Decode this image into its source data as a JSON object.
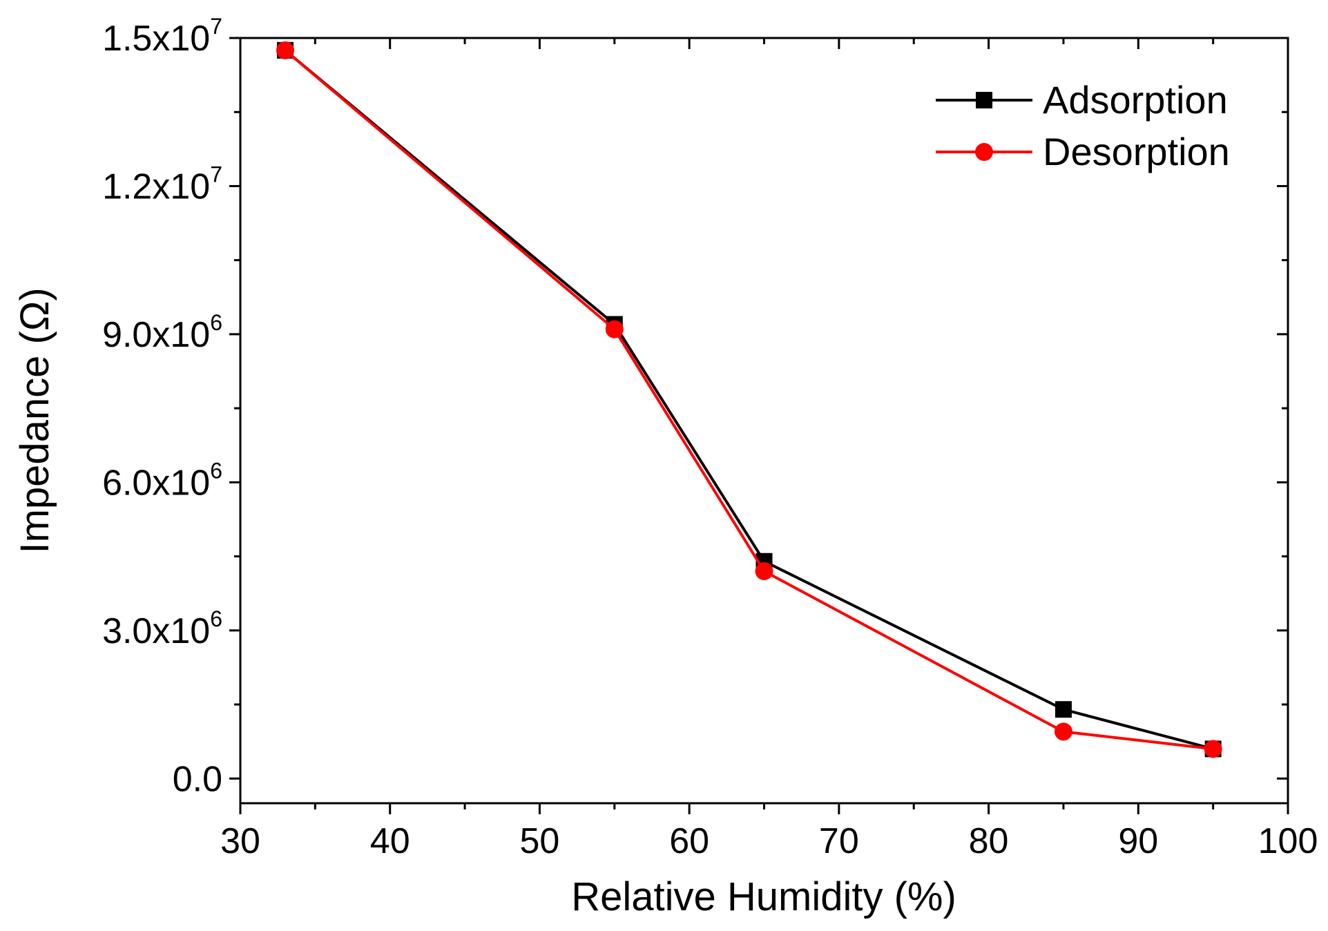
{
  "chart_data": {
    "type": "line",
    "title": "",
    "xlabel": "Relative Humidity (%)",
    "ylabel": "Impedance (Ω)",
    "xlim": [
      30,
      100
    ],
    "ylim": [
      -500000,
      15000000
    ],
    "x_ticks": [
      30,
      40,
      50,
      60,
      70,
      80,
      90,
      100
    ],
    "x_tick_labels": [
      "30",
      "40",
      "50",
      "60",
      "70",
      "80",
      "90",
      "100"
    ],
    "y_ticks": [
      {
        "value": 0,
        "mantissa": "0.0",
        "exponent": ""
      },
      {
        "value": 3000000,
        "mantissa": "3.0x10",
        "exponent": "6"
      },
      {
        "value": 6000000,
        "mantissa": "6.0x10",
        "exponent": "6"
      },
      {
        "value": 9000000,
        "mantissa": "9.0x10",
        "exponent": "6"
      },
      {
        "value": 12000000,
        "mantissa": "1.2x10",
        "exponent": "7"
      },
      {
        "value": 15000000,
        "mantissa": "1.5x10",
        "exponent": "7"
      }
    ],
    "grid": false,
    "legend_position": "top-right",
    "series": [
      {
        "name": "Adsorption",
        "color": "#000000",
        "marker": "square",
        "x": [
          33,
          55,
          65,
          85,
          95
        ],
        "values": [
          14750000,
          9200000,
          4400000,
          1400000,
          600000
        ]
      },
      {
        "name": "Desorption",
        "color": "#ff0000",
        "marker": "circle",
        "x": [
          33,
          55,
          65,
          85,
          95
        ],
        "values": [
          14750000,
          9100000,
          4200000,
          950000,
          600000
        ]
      }
    ]
  }
}
